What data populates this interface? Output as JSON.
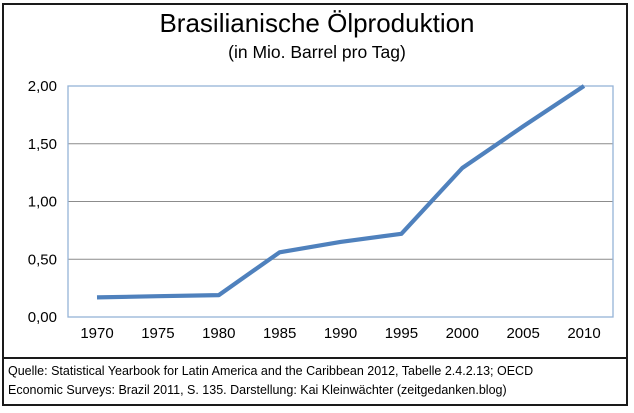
{
  "chart_data": {
    "type": "line",
    "title": "Brasilianische Ölproduktion",
    "subtitle": "(in Mio. Barrel pro Tag)",
    "x": [
      1970,
      1975,
      1980,
      1985,
      1990,
      1995,
      2000,
      2005,
      2010
    ],
    "values": [
      0.17,
      0.18,
      0.19,
      0.56,
      0.65,
      0.72,
      1.29,
      1.65,
      2.0
    ],
    "xtick_labels": [
      "1970",
      "1975",
      "1980",
      "1985",
      "1990",
      "1995",
      "2000",
      "2005",
      "2010"
    ],
    "yticks": [
      0,
      0.5,
      1,
      1.5,
      2
    ],
    "ytick_labels": [
      "0,00",
      "0,50",
      "1,00",
      "1,50",
      "2,00"
    ],
    "ylim": [
      0,
      2
    ],
    "xlabel": "",
    "ylabel": "",
    "grid": true,
    "legend": false,
    "colors": {
      "line": "#4F81BD",
      "plot_border": "#95B3D7",
      "gridline": "#8C8C8C",
      "text": "#000000",
      "frame": "#1A1A1A"
    }
  },
  "source": {
    "line1": "Quelle: Statistical Yearbook for Latin America and the Caribbean 2012, Tabelle 2.4.2.13; OECD",
    "line2": "Economic Surveys: Brazil 2011, S. 135. Darstellung: Kai Kleinwächter (zeitgedanken.blog)"
  }
}
